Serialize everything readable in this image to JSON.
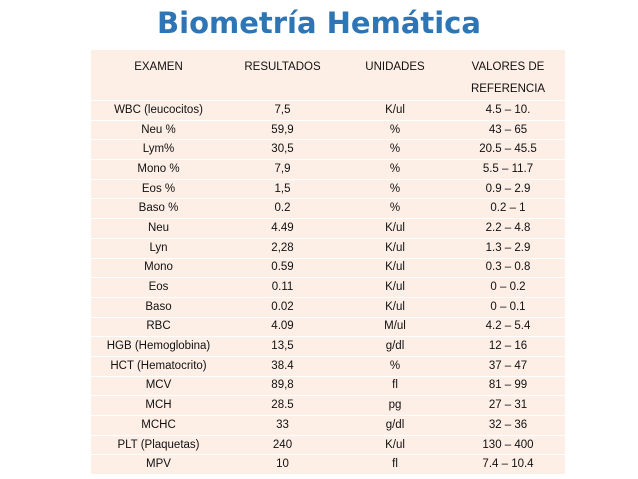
{
  "title": "Biometría Hemática",
  "table": {
    "headers": [
      "EXAMEN",
      "RESULTADOS",
      "UNIDADES",
      "VALORES DE REFERENCIA"
    ],
    "rows": [
      [
        "WBC (leucocitos)",
        "7,5",
        "K/ul",
        "4.5 – 10."
      ],
      [
        "Neu %",
        "59,9",
        "%",
        "43 – 65"
      ],
      [
        "Lym%",
        "30,5",
        "%",
        "20.5 – 45.5"
      ],
      [
        "Mono %",
        "7,9",
        "%",
        "5.5 – 11.7"
      ],
      [
        "Eos %",
        "1,5",
        "%",
        "0.9 – 2.9"
      ],
      [
        "Baso %",
        "0.2",
        "%",
        "0.2 – 1"
      ],
      [
        "Neu",
        "4.49",
        "K/ul",
        "2.2 – 4.8"
      ],
      [
        "Lyn",
        "2,28",
        "K/ul",
        "1.3 – 2.9"
      ],
      [
        "Mono",
        "0.59",
        "K/ul",
        "0.3 – 0.8"
      ],
      [
        "Eos",
        "0.11",
        "K/ul",
        "0 – 0.2"
      ],
      [
        "Baso",
        "0.02",
        "K/ul",
        "0 – 0.1"
      ],
      [
        "RBC",
        "4.09",
        "M/ul",
        "4.2 – 5.4"
      ],
      [
        "HGB (Hemoglobina)",
        "13,5",
        "g/dl",
        "12 – 16"
      ],
      [
        "HCT (Hematocrito)",
        "38.4",
        "%",
        "37 – 47"
      ],
      [
        "MCV",
        "89,8",
        "fl",
        "81 – 99"
      ],
      [
        "MCH",
        "28.5",
        "pg",
        "27 – 31"
      ],
      [
        "MCHC",
        "33",
        "g/dl",
        "32 – 36"
      ],
      [
        "PLT (Plaquetas)",
        "240",
        "K/ul",
        "130 – 400"
      ],
      [
        "MPV",
        "10",
        "fl",
        "7.4 – 10.4"
      ]
    ]
  },
  "colors": {
    "title": "#2e75b6",
    "table_bg": "#fdeee6"
  }
}
